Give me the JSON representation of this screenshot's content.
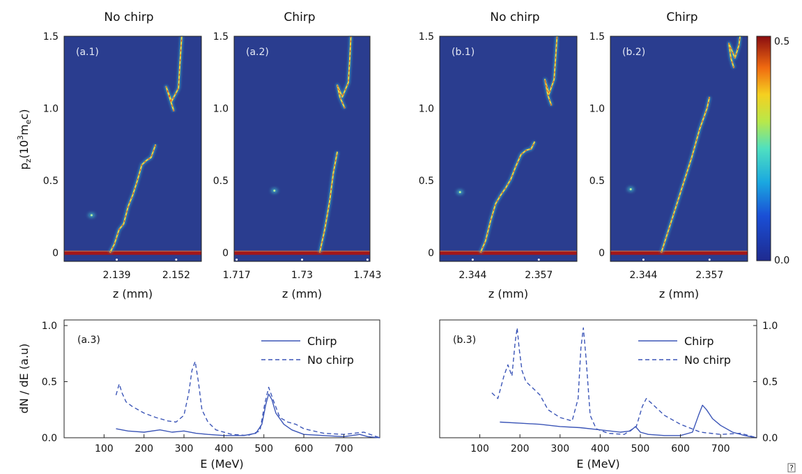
{
  "colors": {
    "background": "#2a3d8f",
    "stripe": "#a3161a",
    "line": "#3b55b7",
    "frame": "#222222"
  },
  "chart_data": [
    {
      "id": "a1",
      "type": "heatmap",
      "title": "No chirp",
      "panel_label": "(a.1)",
      "xlabel": "z (mm)",
      "ylabel_main": "p",
      "ylabel_sub": "z",
      "ylabel_rest": "(10",
      "ylabel_sup": "3",
      "ylabel_tail": "m",
      "ylabel_sub2": "e",
      "ylabel_end": "c)",
      "xlim": [
        2.1275,
        2.1575
      ],
      "ylim": [
        -0.06,
        1.5
      ],
      "xticks": [
        {
          "v": 2.139,
          "label": "2.139"
        },
        {
          "v": 2.152,
          "label": "2.152"
        }
      ],
      "yticks": [
        {
          "v": 0,
          "label": "0"
        },
        {
          "v": 0.5,
          "label": "0.5"
        },
        {
          "v": 1.0,
          "label": "1.0"
        },
        {
          "v": 1.5,
          "label": "1.5"
        }
      ],
      "stripe_y": 0,
      "traces": [
        {
          "pts": [
            [
              2.1375,
              0.0
            ],
            [
              2.1385,
              0.06
            ],
            [
              2.1395,
              0.16
            ],
            [
              2.1405,
              0.2
            ],
            [
              2.1415,
              0.32
            ],
            [
              2.1425,
              0.4
            ],
            [
              2.1435,
              0.5
            ],
            [
              2.1445,
              0.61
            ],
            [
              2.1455,
              0.64
            ],
            [
              2.1465,
              0.66
            ],
            [
              2.1475,
              0.75
            ]
          ],
          "peak": 0.4
        },
        {
          "pts": [
            [
              2.1515,
              0.98
            ],
            [
              2.1508,
              1.05
            ],
            [
              2.1498,
              1.15
            ],
            [
              2.151,
              1.05
            ],
            [
              2.1525,
              1.14
            ],
            [
              2.1528,
              1.3
            ],
            [
              2.1532,
              1.5
            ]
          ],
          "peak": 0.45
        }
      ],
      "blobs": [
        [
          2.1335,
          0.26
        ]
      ]
    },
    {
      "id": "a2",
      "type": "heatmap",
      "title": "Chirp",
      "panel_label": "(a.2)",
      "xlabel": "z (mm)",
      "xlim": [
        1.7165,
        1.7435
      ],
      "ylim": [
        -0.06,
        1.5
      ],
      "xticks": [
        {
          "v": 1.717,
          "label": "1.717"
        },
        {
          "v": 1.73,
          "label": "1.73"
        },
        {
          "v": 1.743,
          "label": "1.743"
        }
      ],
      "yticks": [
        {
          "v": 0,
          "label": "0"
        },
        {
          "v": 0.5,
          "label": "0.5"
        },
        {
          "v": 1.0,
          "label": "1.0"
        },
        {
          "v": 1.5,
          "label": "1.5"
        }
      ],
      "stripe_y": 0,
      "traces": [
        {
          "pts": [
            [
              1.7335,
              0.0
            ],
            [
              1.7345,
              0.16
            ],
            [
              1.7355,
              0.36
            ],
            [
              1.7362,
              0.55
            ],
            [
              1.737,
              0.7
            ]
          ],
          "peak": 0.3
        },
        {
          "pts": [
            [
              1.7385,
              1.0
            ],
            [
              1.7375,
              1.08
            ],
            [
              1.737,
              1.16
            ],
            [
              1.738,
              1.08
            ],
            [
              1.7392,
              1.18
            ],
            [
              1.7395,
              1.35
            ],
            [
              1.7397,
              1.5
            ]
          ],
          "peak": 0.4
        }
      ],
      "blobs": [
        [
          1.7245,
          0.43
        ]
      ]
    },
    {
      "id": "b1",
      "type": "heatmap",
      "title": "No chirp",
      "panel_label": "(b.1)",
      "xlabel": "z (mm)",
      "xlim": [
        2.3375,
        2.3645
      ],
      "ylim": [
        -0.06,
        1.5
      ],
      "xticks": [
        {
          "v": 2.344,
          "label": "2.344"
        },
        {
          "v": 2.357,
          "label": "2.357"
        }
      ],
      "yticks": [
        {
          "v": 0,
          "label": "0"
        },
        {
          "v": 0.5,
          "label": "0.5"
        },
        {
          "v": 1.0,
          "label": "1.0"
        },
        {
          "v": 1.5,
          "label": "1.5"
        }
      ],
      "stripe_y": 0,
      "traces": [
        {
          "pts": [
            [
              2.3455,
              0.0
            ],
            [
              2.3465,
              0.08
            ],
            [
              2.3475,
              0.22
            ],
            [
              2.3485,
              0.34
            ],
            [
              2.3495,
              0.4
            ],
            [
              2.3505,
              0.45
            ],
            [
              2.3515,
              0.51
            ],
            [
              2.3525,
              0.6
            ],
            [
              2.3535,
              0.68
            ],
            [
              2.3545,
              0.71
            ],
            [
              2.3555,
              0.72
            ],
            [
              2.3562,
              0.77
            ]
          ],
          "peak": 0.42
        },
        {
          "pts": [
            [
              2.3595,
              1.02
            ],
            [
              2.3588,
              1.09
            ],
            [
              2.3582,
              1.2
            ],
            [
              2.359,
              1.1
            ],
            [
              2.36,
              1.2
            ],
            [
              2.3603,
              1.35
            ],
            [
              2.3606,
              1.5
            ]
          ],
          "peak": 0.45
        }
      ],
      "blobs": [
        [
          2.3415,
          0.42
        ]
      ]
    },
    {
      "id": "b2",
      "type": "heatmap",
      "title": "Chirp",
      "panel_label": "(b.2)",
      "xlabel": "z (mm)",
      "xlim": [
        2.3375,
        2.3645
      ],
      "ylim": [
        -0.06,
        1.5
      ],
      "xticks": [
        {
          "v": 2.344,
          "label": "2.344"
        },
        {
          "v": 2.357,
          "label": "2.357"
        }
      ],
      "yticks": [
        {
          "v": 0,
          "label": "0"
        },
        {
          "v": 0.5,
          "label": "0.5"
        },
        {
          "v": 1.0,
          "label": "1.0"
        },
        {
          "v": 1.5,
          "label": "1.5"
        }
      ],
      "stripe_y": 0,
      "traces": [
        {
          "pts": [
            [
              2.3475,
              0.0
            ],
            [
              2.3495,
              0.22
            ],
            [
              2.3515,
              0.44
            ],
            [
              2.3535,
              0.66
            ],
            [
              2.355,
              0.85
            ],
            [
              2.3565,
              1.0
            ],
            [
              2.357,
              1.08
            ]
          ],
          "peak": 0.35
        },
        {
          "pts": [
            [
              2.3618,
              1.28
            ],
            [
              2.3612,
              1.35
            ],
            [
              2.3608,
              1.45
            ],
            [
              2.362,
              1.35
            ],
            [
              2.3628,
              1.44
            ],
            [
              2.363,
              1.5
            ]
          ],
          "peak": 0.48
        }
      ],
      "blobs": [
        [
          2.3415,
          0.44
        ]
      ]
    },
    {
      "id": "colorbar",
      "type": "colorbar",
      "min_label": "0.0",
      "max_label": "0.5",
      "range": [
        0.0,
        0.5
      ]
    },
    {
      "id": "a3",
      "type": "line",
      "panel_label": "(a.3)",
      "xlabel": "E (MeV)",
      "ylabel": "dN / dE (a.u)",
      "xlim": [
        0,
        790
      ],
      "ylim": [
        0,
        1.05
      ],
      "xticks": [
        {
          "v": 100,
          "label": "100"
        },
        {
          "v": 200,
          "label": "200"
        },
        {
          "v": 300,
          "label": "300"
        },
        {
          "v": 400,
          "label": "400"
        },
        {
          "v": 500,
          "label": "500"
        },
        {
          "v": 600,
          "label": "600"
        },
        {
          "v": 700,
          "label": "700"
        }
      ],
      "yticks": [
        {
          "v": 0,
          "label": "0.0"
        },
        {
          "v": 0.5,
          "label": "0.5"
        },
        {
          "v": 1.0,
          "label": "1.0"
        }
      ],
      "legend": "top-right",
      "series": [
        {
          "name": "Chirp",
          "style": "solid",
          "x": [
            130,
            160,
            200,
            240,
            270,
            300,
            330,
            360,
            400,
            450,
            480,
            495,
            505,
            512,
            520,
            530,
            550,
            570,
            600,
            650,
            700,
            740,
            760,
            790
          ],
          "y": [
            0.08,
            0.06,
            0.05,
            0.07,
            0.05,
            0.06,
            0.04,
            0.03,
            0.02,
            0.02,
            0.04,
            0.12,
            0.3,
            0.39,
            0.34,
            0.22,
            0.12,
            0.07,
            0.03,
            0.02,
            0.01,
            0.03,
            0.01,
            0.0
          ]
        },
        {
          "name": "No chirp",
          "style": "dashed",
          "x": [
            130,
            138,
            145,
            155,
            170,
            200,
            230,
            260,
            280,
            300,
            312,
            320,
            328,
            336,
            345,
            360,
            380,
            420,
            460,
            490,
            502,
            512,
            522,
            540,
            560,
            580,
            600,
            650,
            700,
            750,
            790
          ],
          "y": [
            0.38,
            0.48,
            0.4,
            0.32,
            0.28,
            0.22,
            0.18,
            0.15,
            0.14,
            0.2,
            0.4,
            0.6,
            0.68,
            0.5,
            0.25,
            0.14,
            0.07,
            0.03,
            0.02,
            0.06,
            0.3,
            0.45,
            0.35,
            0.18,
            0.14,
            0.12,
            0.08,
            0.04,
            0.03,
            0.05,
            0.0
          ]
        }
      ]
    },
    {
      "id": "b3",
      "type": "line",
      "panel_label": "(b.3)",
      "xlabel": "E (MeV)",
      "xlim": [
        0,
        790
      ],
      "ylim": [
        0,
        1.05
      ],
      "xticks": [
        {
          "v": 100,
          "label": "100"
        },
        {
          "v": 200,
          "label": "200"
        },
        {
          "v": 300,
          "label": "300"
        },
        {
          "v": 400,
          "label": "400"
        },
        {
          "v": 500,
          "label": "500"
        },
        {
          "v": 600,
          "label": "600"
        },
        {
          "v": 700,
          "label": "700"
        }
      ],
      "yticks": [
        {
          "v": 0,
          "label": "0.0"
        },
        {
          "v": 0.5,
          "label": "0.5"
        },
        {
          "v": 1.0,
          "label": "1.0"
        }
      ],
      "legend": "top-right",
      "series": [
        {
          "name": "Chirp",
          "style": "solid",
          "x": [
            150,
            200,
            250,
            300,
            350,
            400,
            450,
            475,
            488,
            500,
            520,
            560,
            600,
            630,
            645,
            655,
            665,
            680,
            700,
            730,
            760,
            790
          ],
          "y": [
            0.14,
            0.13,
            0.12,
            0.1,
            0.09,
            0.07,
            0.05,
            0.06,
            0.1,
            0.05,
            0.03,
            0.02,
            0.02,
            0.05,
            0.2,
            0.29,
            0.25,
            0.17,
            0.11,
            0.05,
            0.02,
            0.0
          ]
        },
        {
          "name": "No chirp",
          "style": "dashed",
          "x": [
            130,
            145,
            160,
            170,
            180,
            188,
            193,
            198,
            205,
            215,
            230,
            250,
            270,
            300,
            330,
            345,
            352,
            358,
            365,
            375,
            390,
            420,
            460,
            490,
            505,
            515,
            530,
            560,
            600,
            650,
            700,
            750,
            790
          ],
          "y": [
            0.4,
            0.35,
            0.55,
            0.65,
            0.55,
            0.85,
            0.98,
            0.8,
            0.6,
            0.5,
            0.45,
            0.38,
            0.25,
            0.18,
            0.15,
            0.35,
            0.8,
            0.98,
            0.7,
            0.2,
            0.08,
            0.04,
            0.03,
            0.1,
            0.28,
            0.35,
            0.3,
            0.2,
            0.12,
            0.05,
            0.03,
            0.04,
            0.0
          ]
        }
      ]
    }
  ],
  "corner_glyph": "?"
}
